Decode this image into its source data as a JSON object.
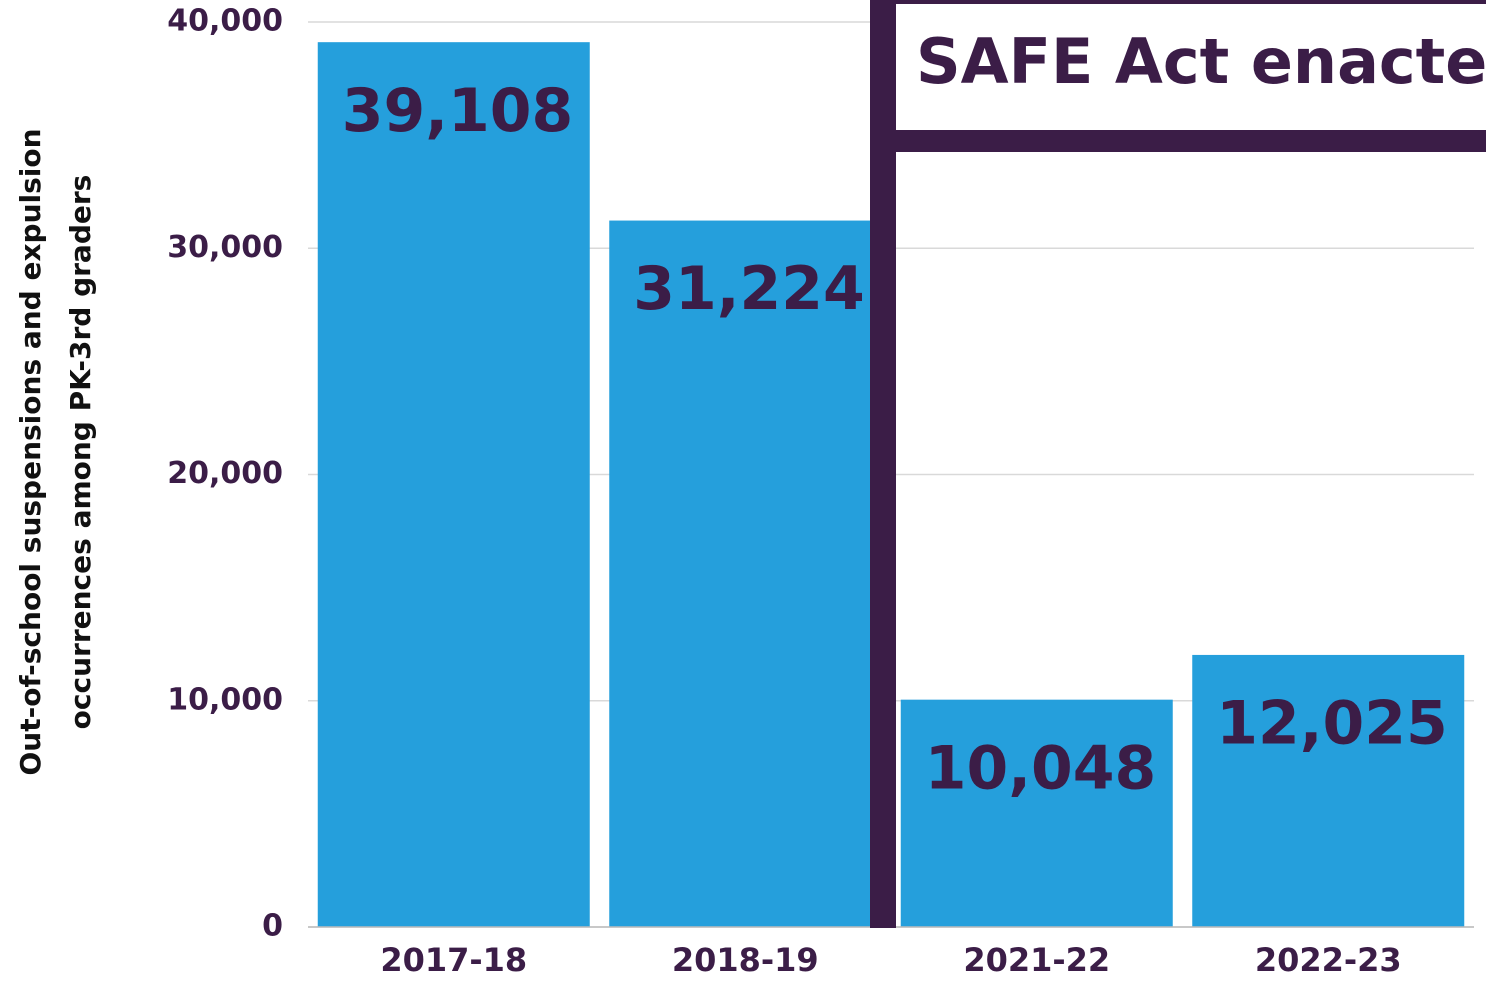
{
  "chart_data": {
    "type": "bar",
    "ylabel": [
      "Out-of-school suspensions and expulsion",
      "occurrences among PK-3rd graders"
    ],
    "annotation": "SAFE Act enacted",
    "categories": [
      "2017-18",
      "2018-19",
      "2021-22",
      "2022-23"
    ],
    "values": [
      39108,
      31224,
      10048,
      12025
    ],
    "value_labels": [
      "39,108",
      "31,224",
      "10,048",
      "12,025"
    ],
    "color": "#259fdc",
    "ylim": [
      0,
      40000
    ],
    "yticks": [
      0,
      {
        "value": 10000,
        "label": "10,000"
      },
      {
        "value": 20000,
        "label": "20,000"
      },
      {
        "value": 30000,
        "label": "30,000"
      },
      {
        "value": 40000,
        "label": "40,000"
      }
    ],
    "grid": true
  }
}
